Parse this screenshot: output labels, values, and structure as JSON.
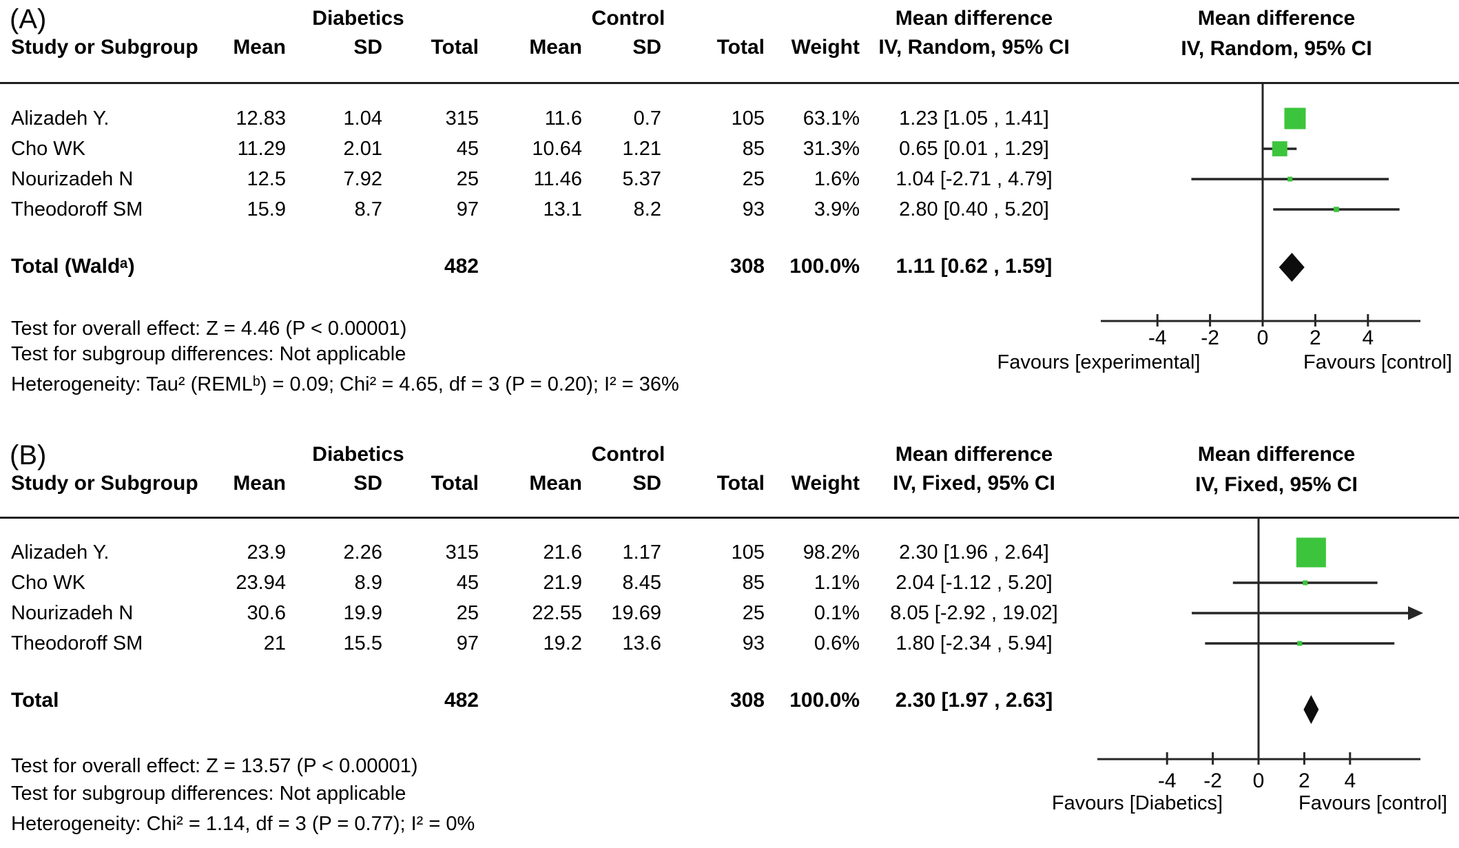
{
  "panels": [
    {
      "label": "(A)",
      "group_headers": {
        "experimental": "Diabetics",
        "control": "Control",
        "effect_table": "Mean difference",
        "effect_plot": "Mean difference"
      },
      "column_headers": {
        "study": "Study or Subgroup",
        "mean1": "Mean",
        "sd1": "SD",
        "total1": "Total",
        "mean2": "Mean",
        "sd2": "SD",
        "total2": "Total",
        "weight": "Weight",
        "ci": "IV, Random, 95% CI",
        "ci_plot": "IV, Random, 95% CI"
      },
      "rows": [
        {
          "study": "Alizadeh Y.",
          "mean1": "12.83",
          "sd1": "1.04",
          "total1": "315",
          "mean2": "11.6",
          "sd2": "0.7",
          "total2": "105",
          "weight": "63.1%",
          "ci": "1.23 [1.05 , 1.41]"
        },
        {
          "study": "Cho WK",
          "mean1": "11.29",
          "sd1": "2.01",
          "total1": "45",
          "mean2": "10.64",
          "sd2": "1.21",
          "total2": "85",
          "weight": "31.3%",
          "ci": "0.65 [0.01 , 1.29]"
        },
        {
          "study": "Nourizadeh N",
          "mean1": "12.5",
          "sd1": "7.92",
          "total1": "25",
          "mean2": "11.46",
          "sd2": "5.37",
          "total2": "25",
          "weight": "1.6%",
          "ci": "1.04 [-2.71 , 4.79]"
        },
        {
          "study": "Theodoroff SM",
          "mean1": "15.9",
          "sd1": "8.7",
          "total1": "97",
          "mean2": "13.1",
          "sd2": "8.2",
          "total2": "93",
          "weight": "3.9%",
          "ci": "2.80 [0.40 , 5.20]"
        }
      ],
      "total_row": {
        "label": "Total (Waldᵃ)",
        "total1": "482",
        "total2": "308",
        "weight": "100.0%",
        "ci": "1.11 [0.62 , 1.59]"
      },
      "footnotes": [
        "Test for overall effect: Z = 4.46 (P < 0.00001)",
        "Test for subgroup differences: Not applicable",
        "Heterogeneity: Tau² (REMLᵇ) = 0.09; Chi² = 4.65, df = 3 (P = 0.20); I² = 36%"
      ]
    },
    {
      "label": "(B)",
      "group_headers": {
        "experimental": "Diabetics",
        "control": "Control",
        "effect_table": "Mean difference",
        "effect_plot": "Mean difference"
      },
      "column_headers": {
        "study": "Study or Subgroup",
        "mean1": "Mean",
        "sd1": "SD",
        "total1": "Total",
        "mean2": "Mean",
        "sd2": "SD",
        "total2": "Total",
        "weight": "Weight",
        "ci": "IV, Fixed, 95% CI",
        "ci_plot": "IV, Fixed, 95% CI"
      },
      "rows": [
        {
          "study": "Alizadeh Y.",
          "mean1": "23.9",
          "sd1": "2.26",
          "total1": "315",
          "mean2": "21.6",
          "sd2": "1.17",
          "total2": "105",
          "weight": "98.2%",
          "ci": "2.30 [1.96 , 2.64]"
        },
        {
          "study": "Cho WK",
          "mean1": "23.94",
          "sd1": "8.9",
          "total1": "45",
          "mean2": "21.9",
          "sd2": "8.45",
          "total2": "85",
          "weight": "1.1%",
          "ci": "2.04 [-1.12 , 5.20]"
        },
        {
          "study": "Nourizadeh N",
          "mean1": "30.6",
          "sd1": "19.9",
          "total1": "25",
          "mean2": "22.55",
          "sd2": "19.69",
          "total2": "25",
          "weight": "0.1%",
          "ci": "8.05 [-2.92 , 19.02]"
        },
        {
          "study": "Theodoroff SM",
          "mean1": "21",
          "sd1": "15.5",
          "total1": "97",
          "mean2": "19.2",
          "sd2": "13.6",
          "total2": "93",
          "weight": "0.6%",
          "ci": "1.80 [-2.34 , 5.94]"
        }
      ],
      "total_row": {
        "label": "Total",
        "total1": "482",
        "total2": "308",
        "weight": "100.0%",
        "ci": "2.30 [1.97 , 2.63]"
      },
      "footnotes": [
        "Test for overall effect: Z = 13.57 (P < 0.00001)",
        "Test for subgroup differences: Not applicable",
        "Heterogeneity: Chi² = 1.14, df = 3 (P = 0.77); I² = 0%"
      ]
    }
  ],
  "chart_data": [
    {
      "type": "scatter",
      "subtype": "forest-plot",
      "title": "Mean difference, IV, Random, 95% CI",
      "studies": [
        "Alizadeh Y.",
        "Cho WK",
        "Nourizadeh N",
        "Theodoroff SM"
      ],
      "estimates": [
        1.23,
        0.65,
        1.04,
        2.8
      ],
      "ci_low": [
        1.05,
        0.01,
        -2.71,
        0.4
      ],
      "ci_high": [
        1.41,
        1.29,
        4.79,
        5.2
      ],
      "weights_pct": [
        63.1,
        31.3,
        1.6,
        3.9
      ],
      "summary": {
        "label": "Total (Waldᵃ)",
        "estimate": 1.11,
        "ci_low": 0.62,
        "ci_high": 1.59
      },
      "xticks": [
        -4,
        -2,
        0,
        2,
        4
      ],
      "xlim": [
        -6,
        6
      ],
      "xlabel_left": "Favours [experimental]",
      "xlabel_right": "Favours [control]",
      "marker_color": "#3CC53C",
      "line_color": "#262626",
      "diamond_color": "#0d0d0d"
    },
    {
      "type": "scatter",
      "subtype": "forest-plot",
      "title": "Mean difference, IV, Fixed, 95% CI",
      "studies": [
        "Alizadeh Y.",
        "Cho WK",
        "Nourizadeh N",
        "Theodoroff SM"
      ],
      "estimates": [
        2.3,
        2.04,
        8.05,
        1.8
      ],
      "ci_low": [
        1.96,
        -1.12,
        -2.92,
        -2.34
      ],
      "ci_high": [
        2.64,
        5.2,
        19.02,
        5.94
      ],
      "weights_pct": [
        98.2,
        1.1,
        0.1,
        0.6
      ],
      "summary": {
        "label": "Total",
        "estimate": 2.3,
        "ci_low": 1.97,
        "ci_high": 2.63
      },
      "xticks": [
        -4,
        -2,
        0,
        2,
        4
      ],
      "xlim": [
        -7.1,
        7.1
      ],
      "xlabel_left": "Favours [Diabetics]",
      "xlabel_right": "Favours [control]",
      "marker_color": "#3CC53C",
      "line_color": "#262626",
      "diamond_color": "#0d0d0d"
    }
  ]
}
